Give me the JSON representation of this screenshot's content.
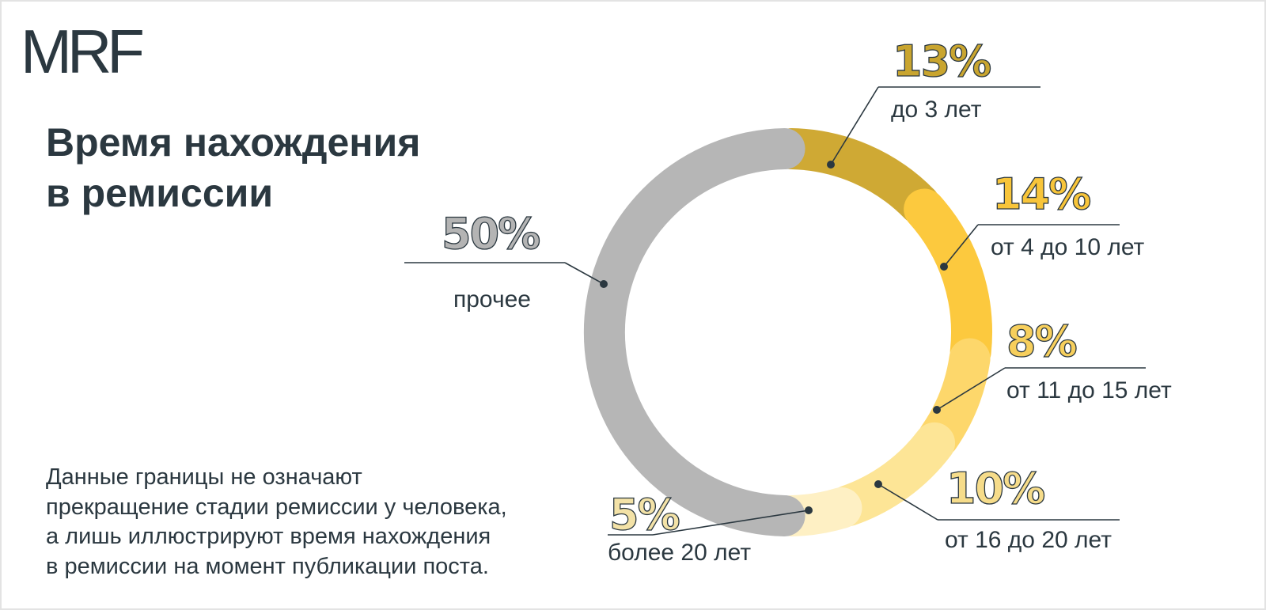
{
  "logo": "MRF",
  "title_lines": [
    "Время нахождения",
    "в ремиссии"
  ],
  "note_lines": [
    "Данные границы не означают",
    "прекращение стадии ремиссии у человека,",
    "а лишь иллюстрируют время нахождения",
    "в ремиссии на момент публикации поста."
  ],
  "chart_data": {
    "type": "pie",
    "variant": "donut",
    "title": "Время нахождения в ремиссии",
    "segments": [
      {
        "label": "до 3 лет",
        "value": 13,
        "value_label": "13%",
        "color": "#cfa934",
        "text_color": "#c9a52f"
      },
      {
        "label": "от 4 до 10 лет",
        "value": 14,
        "value_label": "14%",
        "color": "#fcc93e",
        "text_color": "#f8c53a"
      },
      {
        "label": "от 11 до 15 лет",
        "value": 8,
        "value_label": "8%",
        "color": "#fdd76b",
        "text_color": "#f7cf5c"
      },
      {
        "label": "от 16 до 20 лет",
        "value": 10,
        "value_label": "10%",
        "color": "#fde596",
        "text_color": "#f6dc8a"
      },
      {
        "label": "более 20 лет",
        "value": 5,
        "value_label": "5%",
        "color": "#fef0c4",
        "text_color": "#f3e2a7"
      },
      {
        "label": "прочее",
        "value": 50,
        "value_label": "50%",
        "color": "#b6b6b6",
        "text_color": "#b4b4b4"
      }
    ]
  }
}
